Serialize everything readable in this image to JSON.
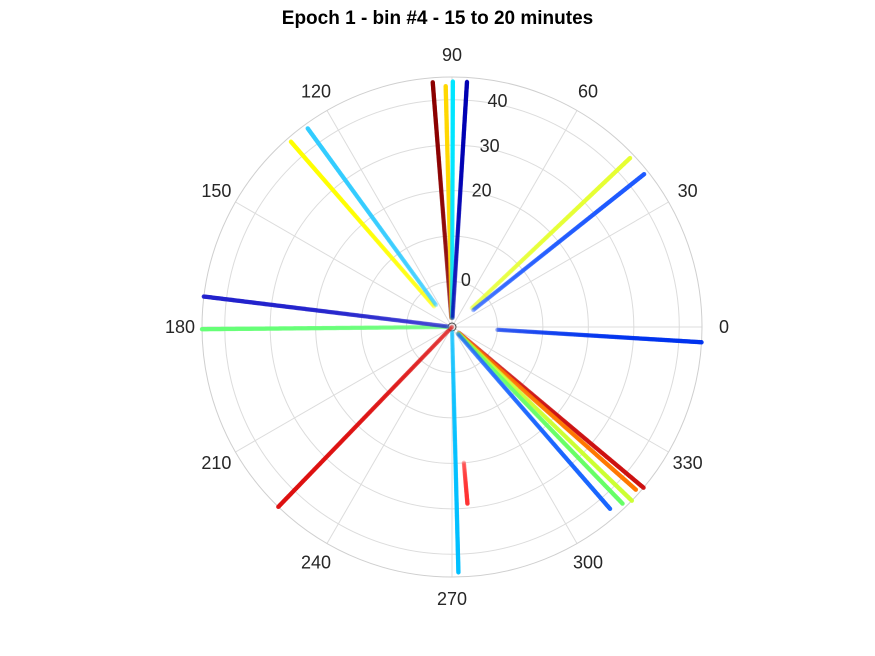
{
  "chart_data": {
    "type": "scatter",
    "title": "Epoch 1 - bin #4 - 15 to 20 minutes",
    "coordinate_system": "polar",
    "angle_unit": "degrees",
    "angle_ticks": [
      "0",
      "30",
      "60",
      "90",
      "120",
      "150",
      "180",
      "210",
      "240",
      "270",
      "300",
      "330"
    ],
    "radius_ticks": [
      "0",
      "20",
      "30",
      "40"
    ],
    "rlim": [
      -10,
      45
    ],
    "grid": true,
    "legend": "none",
    "series": [
      {
        "color": "#8b0000",
        "angle": 94.5,
        "r_start": -8,
        "r_end": 44,
        "segments": [
          [
            -8,
            44
          ]
        ]
      },
      {
        "color": "#ffd700",
        "angle": 91.5,
        "r_start": -8,
        "r_end": 43,
        "segments": [
          [
            -8,
            43
          ]
        ]
      },
      {
        "color": "#00e5ff",
        "angle": 89.8,
        "r_start": -8,
        "r_end": 44,
        "segments": [
          [
            -8,
            44
          ]
        ]
      },
      {
        "color": "#0000b3",
        "angle": 86.5,
        "r_start": -8,
        "r_end": 44,
        "segments": [
          [
            -8,
            44
          ]
        ]
      },
      {
        "color": "#e6ff33",
        "angle": 43.5,
        "r_start": -4,
        "r_end": 44,
        "segments": [
          [
            -4,
            44
          ]
        ]
      },
      {
        "color": "#1f5aff",
        "angle": 38.5,
        "r_start": -4,
        "r_end": 44,
        "segments": [
          [
            -4,
            44
          ]
        ]
      },
      {
        "color": "#0033ee",
        "angle": -3.5,
        "r_start": 0,
        "r_end": 45,
        "segments": [
          [
            0,
            45
          ]
        ]
      },
      {
        "color": "#cc1111",
        "angle": -40,
        "r_start": -8,
        "r_end": 45,
        "segments": [
          [
            -8,
            45
          ]
        ]
      },
      {
        "color": "#ff7700",
        "angle": -41.5,
        "r_start": -8,
        "r_end": 44,
        "segments": [
          [
            -8,
            44
          ]
        ]
      },
      {
        "color": "#ccff33",
        "angle": -44,
        "r_start": -8,
        "r_end": 45,
        "segments": [
          [
            -8,
            45
          ]
        ]
      },
      {
        "color": "#66ff66",
        "angle": -46,
        "r_start": -8,
        "r_end": 44,
        "segments": [
          [
            -8,
            44
          ]
        ]
      },
      {
        "color": "#1a66ff",
        "angle": -49,
        "r_start": -8,
        "r_end": 43,
        "segments": [
          [
            -8,
            43
          ]
        ]
      },
      {
        "color": "#00bfff",
        "angle": -88.5,
        "r_start": -9,
        "r_end": 44,
        "segments": [
          [
            -9,
            44
          ]
        ]
      },
      {
        "color": "#ff3333",
        "angle": -85,
        "r_start": 20,
        "r_end": 29,
        "segments": [
          [
            20,
            29
          ]
        ]
      },
      {
        "color": "#dd1111",
        "angle": -134,
        "r_start": -10,
        "r_end": 45,
        "segments": [
          [
            -10,
            45
          ]
        ]
      },
      {
        "color": "#66ff77",
        "angle": 180.5,
        "r_start": -9,
        "r_end": 45,
        "segments": [
          [
            -9,
            45
          ]
        ]
      },
      {
        "color": "#2222cc",
        "angle": 173,
        "r_start": -9,
        "r_end": 45,
        "segments": [
          [
            -9,
            45
          ]
        ]
      },
      {
        "color": "#ffff00",
        "angle": 131,
        "r_start": -4,
        "r_end": 44,
        "segments": [
          [
            -4,
            44
          ]
        ]
      },
      {
        "color": "#33ccff",
        "angle": 126,
        "r_start": -4,
        "r_end": 44,
        "segments": [
          [
            -4,
            44
          ]
        ]
      }
    ]
  }
}
